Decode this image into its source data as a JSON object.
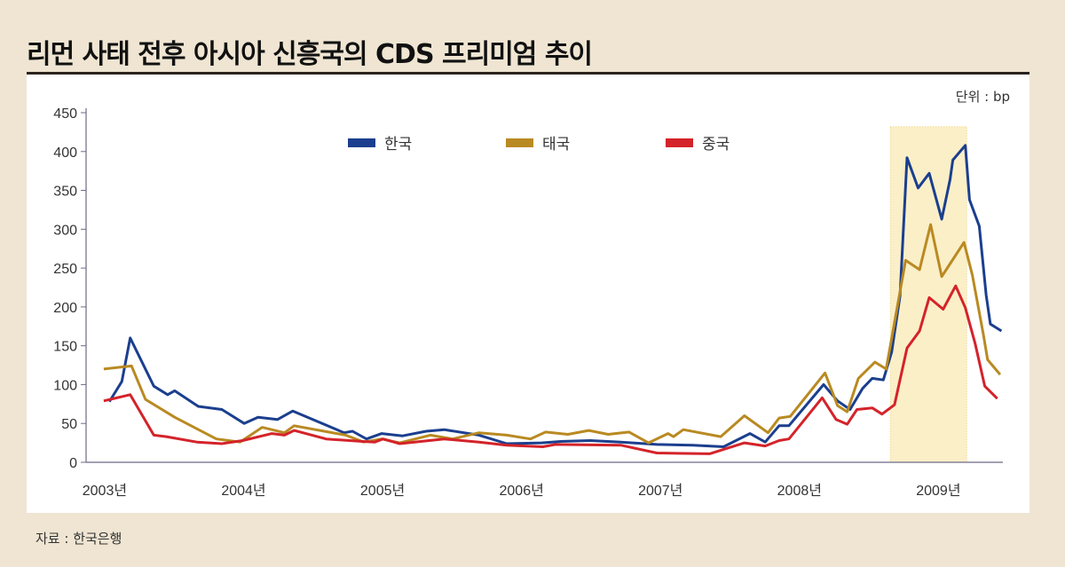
{
  "chart_data": {
    "type": "line",
    "title": "리먼 사태 전후 아시아 신흥국의 CDS 프리미엄 추이",
    "unit_label": "단위 : bp",
    "source": "자료 : 한국은행",
    "xlim": [
      2002.86,
      2009.47
    ],
    "ylim": [
      0,
      450
    ],
    "yticks": [
      0,
      50,
      100,
      150,
      200,
      250,
      300,
      350,
      400,
      450
    ],
    "xticks": [
      {
        "value": 2003,
        "label": "2003년"
      },
      {
        "value": 2004,
        "label": "2004년"
      },
      {
        "value": 2005,
        "label": "2005년"
      },
      {
        "value": 2006,
        "label": "2006년"
      },
      {
        "value": 2007,
        "label": "2007년"
      },
      {
        "value": 2008,
        "label": "2008년"
      },
      {
        "value": 2009,
        "label": "2009년"
      }
    ],
    "grid": false,
    "legend_position": "top-center",
    "highlight": {
      "x_range": [
        2008.66,
        2009.21
      ],
      "y_top": 432,
      "color": "#fbefc8"
    },
    "series": [
      {
        "name": "한국",
        "color": "#1b3f8e",
        "x": [
          2003.04,
          2003.13,
          2003.19,
          2003.36,
          2003.46,
          2003.51,
          2003.68,
          2003.85,
          2004.01,
          2004.11,
          2004.25,
          2004.36,
          2004.73,
          2004.79,
          2004.89,
          2005.0,
          2005.15,
          2005.32,
          2005.45,
          2005.7,
          2005.9,
          2006.15,
          2006.3,
          2006.5,
          2006.72,
          2006.98,
          2007.24,
          2007.46,
          2007.65,
          2007.76,
          2007.86,
          2007.93,
          2008.18,
          2008.28,
          2008.37,
          2008.46,
          2008.53,
          2008.61,
          2008.67,
          2008.73,
          2008.78,
          2008.86,
          2008.94,
          2009.03,
          2009.09,
          2009.11,
          2009.2,
          2009.23,
          2009.3,
          2009.35,
          2009.38,
          2009.46
        ],
        "y": [
          78,
          104,
          160,
          98,
          87,
          92,
          72,
          68,
          50,
          58,
          55,
          66,
          38,
          40,
          30,
          37,
          34,
          40,
          42,
          35,
          24,
          25,
          27,
          28,
          26,
          23,
          22,
          20,
          37,
          26,
          47,
          47,
          100,
          79,
          68,
          95,
          108,
          106,
          142,
          214,
          392,
          353,
          372,
          313,
          364,
          389,
          408,
          338,
          304,
          215,
          178,
          169
        ]
      },
      {
        "name": "태국",
        "color": "#b98a22",
        "x": [
          2003.0,
          2003.2,
          2003.3,
          2003.51,
          2003.81,
          2003.98,
          2004.14,
          2004.3,
          2004.37,
          2004.74,
          2004.87,
          2005.0,
          2005.13,
          2005.35,
          2005.51,
          2005.7,
          2005.9,
          2006.07,
          2006.18,
          2006.34,
          2006.49,
          2006.63,
          2006.78,
          2006.92,
          2007.06,
          2007.1,
          2007.17,
          2007.44,
          2007.61,
          2007.78,
          2007.86,
          2007.94,
          2008.19,
          2008.28,
          2008.35,
          2008.43,
          2008.55,
          2008.63,
          2008.77,
          2008.87,
          2008.95,
          2009.03,
          2009.11,
          2009.19,
          2009.25,
          2009.33,
          2009.36,
          2009.45
        ],
        "y": [
          120,
          124,
          81,
          58,
          30,
          26,
          45,
          38,
          47,
          35,
          26,
          30,
          25,
          35,
          30,
          38,
          35,
          30,
          39,
          36,
          41,
          36,
          39,
          25,
          37,
          33,
          42,
          33,
          60,
          38,
          57,
          59,
          115,
          73,
          65,
          108,
          129,
          120,
          260,
          248,
          306,
          239,
          261,
          283,
          241,
          164,
          132,
          113
        ]
      },
      {
        "name": "중국",
        "color": "#d4232a",
        "x": [
          2003.0,
          2003.19,
          2003.36,
          2003.45,
          2003.67,
          2003.85,
          2004.0,
          2004.21,
          2004.3,
          2004.37,
          2004.6,
          2004.85,
          2004.95,
          2005.01,
          2005.13,
          2005.45,
          2005.7,
          2005.9,
          2006.16,
          2006.25,
          2006.72,
          2006.98,
          2007.36,
          2007.61,
          2007.76,
          2007.86,
          2007.93,
          2008.17,
          2008.27,
          2008.35,
          2008.42,
          2008.53,
          2008.6,
          2008.69,
          2008.78,
          2008.87,
          2008.94,
          2009.04,
          2009.13,
          2009.2,
          2009.27,
          2009.34,
          2009.43
        ],
        "y": [
          79,
          87,
          35,
          33,
          26,
          24,
          28,
          37,
          35,
          41,
          30,
          27,
          26,
          30,
          24,
          30,
          26,
          22,
          20,
          23,
          22,
          12,
          11,
          25,
          21,
          28,
          30,
          83,
          55,
          49,
          68,
          70,
          62,
          74,
          147,
          169,
          212,
          197,
          227,
          199,
          153,
          98,
          82
        ]
      }
    ]
  }
}
